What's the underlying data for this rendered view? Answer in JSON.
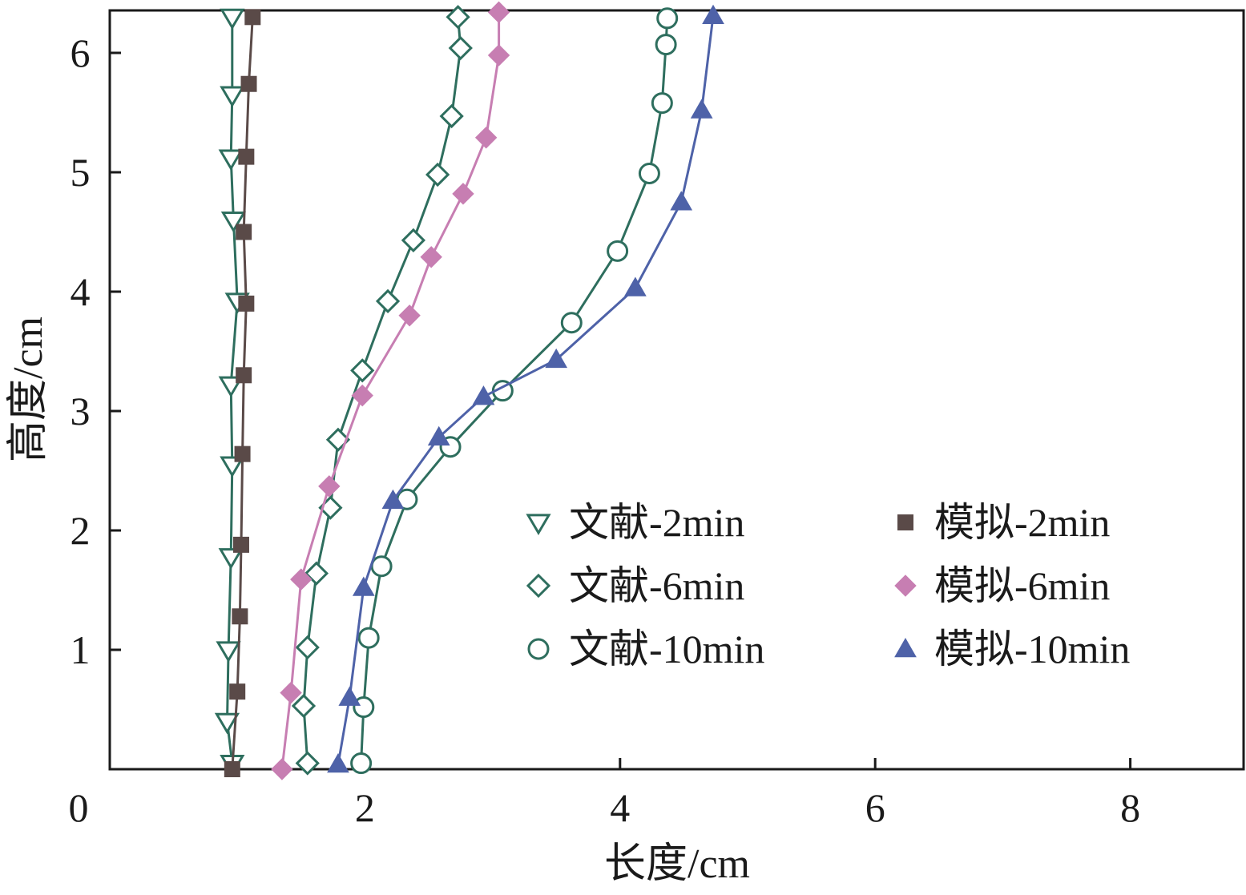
{
  "chart_data": {
    "type": "line",
    "xlabel": "长度/cm",
    "ylabel": "高度/cm",
    "xlim": [
      0,
      9
    ],
    "ylim": [
      0,
      6.35
    ],
    "x_ticks": [
      {
        "value": 0,
        "label": "0"
      },
      {
        "value": 2,
        "label": "2"
      },
      {
        "value": 4,
        "label": "4"
      },
      {
        "value": 6,
        "label": "6"
      },
      {
        "value": 8,
        "label": "8"
      }
    ],
    "y_ticks": [
      {
        "value": 1,
        "label": "1"
      },
      {
        "value": 2,
        "label": "2"
      },
      {
        "value": 3,
        "label": "3"
      },
      {
        "value": 4,
        "label": "4"
      },
      {
        "value": 5,
        "label": "5"
      },
      {
        "value": 6,
        "label": "6"
      }
    ],
    "grid": false,
    "legend_position": "lower-right",
    "series": [
      {
        "name": "文献-2min",
        "marker": "triangle-down-open",
        "color": "#2e6e5e",
        "points": [
          [
            0.96,
            0.05
          ],
          [
            0.92,
            0.4
          ],
          [
            0.93,
            1.0
          ],
          [
            0.95,
            1.78
          ],
          [
            0.96,
            2.55
          ],
          [
            0.95,
            3.22
          ],
          [
            1.0,
            3.92
          ],
          [
            0.97,
            4.6
          ],
          [
            0.95,
            5.12
          ],
          [
            0.96,
            5.65
          ],
          [
            0.96,
            6.3
          ]
        ]
      },
      {
        "name": "模拟-2min",
        "marker": "square",
        "color": "#5a4a48",
        "points": [
          [
            0.96,
            0.0
          ],
          [
            1.0,
            0.65
          ],
          [
            1.02,
            1.28
          ],
          [
            1.03,
            1.88
          ],
          [
            1.04,
            2.64
          ],
          [
            1.05,
            3.3
          ],
          [
            1.07,
            3.9
          ],
          [
            1.05,
            4.5
          ],
          [
            1.07,
            5.13
          ],
          [
            1.09,
            5.74
          ],
          [
            1.12,
            6.3
          ]
        ]
      },
      {
        "name": "文献-6min",
        "marker": "diamond-open",
        "color": "#2e6e5e",
        "points": [
          [
            1.55,
            0.05
          ],
          [
            1.52,
            0.53
          ],
          [
            1.55,
            1.02
          ],
          [
            1.62,
            1.64
          ],
          [
            1.73,
            2.19
          ],
          [
            1.79,
            2.76
          ],
          [
            1.98,
            3.34
          ],
          [
            2.18,
            3.92
          ],
          [
            2.38,
            4.43
          ],
          [
            2.57,
            4.98
          ],
          [
            2.68,
            5.47
          ],
          [
            2.75,
            6.04
          ],
          [
            2.73,
            6.3
          ]
        ]
      },
      {
        "name": "模拟-6min",
        "marker": "diamond",
        "color": "#c77eb2",
        "points": [
          [
            1.35,
            0.0
          ],
          [
            1.42,
            0.64
          ],
          [
            1.5,
            1.59
          ],
          [
            1.72,
            2.37
          ],
          [
            1.98,
            3.13
          ],
          [
            2.35,
            3.8
          ],
          [
            2.52,
            4.29
          ],
          [
            2.77,
            4.82
          ],
          [
            2.95,
            5.29
          ],
          [
            3.05,
            5.98
          ],
          [
            3.05,
            6.34
          ]
        ]
      },
      {
        "name": "文献-10min",
        "marker": "circle-open",
        "color": "#2e6e5e",
        "points": [
          [
            1.97,
            0.05
          ],
          [
            1.99,
            0.52
          ],
          [
            2.03,
            1.1
          ],
          [
            2.13,
            1.7
          ],
          [
            2.33,
            2.26
          ],
          [
            2.67,
            2.7
          ],
          [
            3.08,
            3.17
          ],
          [
            3.62,
            3.74
          ],
          [
            3.98,
            4.34
          ],
          [
            4.23,
            4.99
          ],
          [
            4.33,
            5.58
          ],
          [
            4.36,
            6.07
          ],
          [
            4.37,
            6.29
          ]
        ]
      },
      {
        "name": "模拟-10min",
        "marker": "triangle-up",
        "color": "#4e62a8",
        "points": [
          [
            1.79,
            0.04
          ],
          [
            1.88,
            0.6
          ],
          [
            1.99,
            1.52
          ],
          [
            2.22,
            2.25
          ],
          [
            2.58,
            2.78
          ],
          [
            2.93,
            3.12
          ],
          [
            3.5,
            3.43
          ],
          [
            4.12,
            4.03
          ],
          [
            4.48,
            4.75
          ],
          [
            4.64,
            5.52
          ],
          [
            4.73,
            6.31
          ]
        ]
      }
    ]
  }
}
